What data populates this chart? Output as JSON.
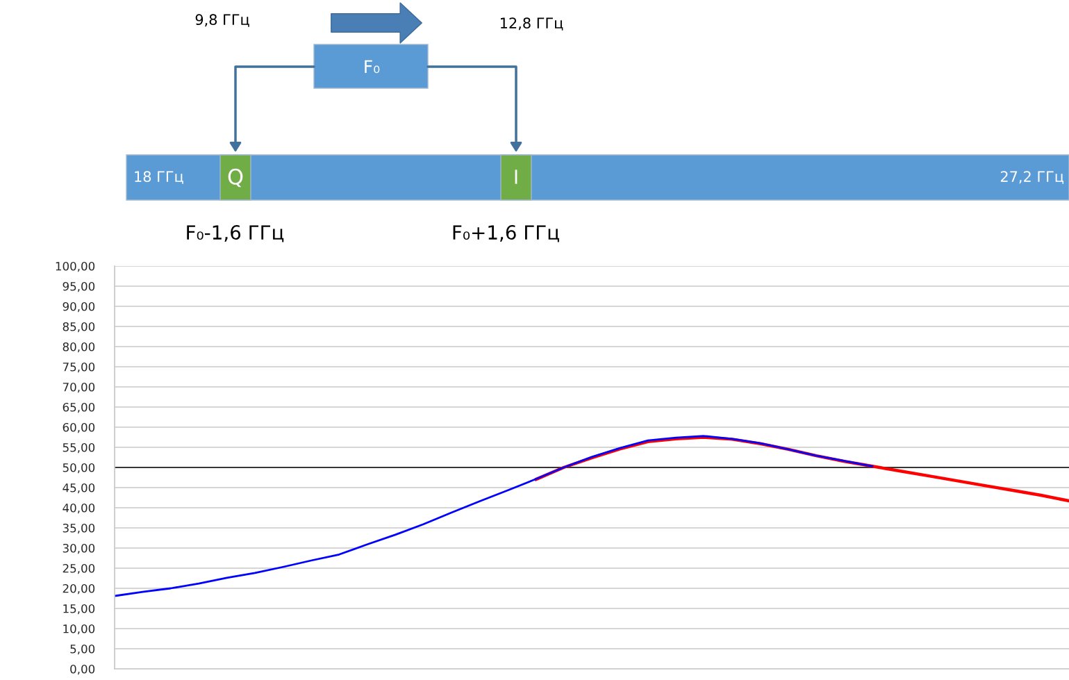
{
  "chart_data": {
    "type": "line",
    "categories": [
      null,
      null,
      null,
      null,
      null,
      null,
      null,
      null,
      null,
      null,
      null,
      null,
      null,
      null,
      null,
      null,
      null,
      null,
      null,
      null,
      null,
      null,
      null,
      null,
      null,
      null,
      null,
      null,
      null,
      null,
      null,
      null,
      null,
      null,
      null
    ],
    "series": [
      {
        "color": "#ff0000",
        "values": [
          null,
          null,
          null,
          null,
          null,
          null,
          null,
          null,
          null,
          null,
          null,
          null,
          null,
          null,
          null,
          47.0,
          50.0,
          52.4,
          54.6,
          56.4,
          57.1,
          57.5,
          57.0,
          55.9,
          54.5,
          52.9,
          51.5,
          50.3,
          49.1,
          47.9,
          46.7,
          45.5,
          44.3,
          43.1,
          41.7
        ]
      },
      {
        "color": "#0000ff",
        "values": [
          18.1,
          19.1,
          20.0,
          21.2,
          22.6,
          23.8,
          25.3,
          26.9,
          28.4,
          30.9,
          33.3,
          35.9,
          38.8,
          41.6,
          44.3,
          47.1,
          50.0,
          52.6,
          54.8,
          56.7,
          57.4,
          57.8,
          57.1,
          56.0,
          54.5,
          52.9,
          51.6,
          50.3,
          null,
          null,
          null,
          null,
          null,
          null,
          null
        ]
      }
    ],
    "ylim": [
      0,
      100
    ],
    "yticks": [
      {
        "value": 0,
        "label": "0,00"
      },
      {
        "value": 5,
        "label": "5,00"
      },
      {
        "value": 10,
        "label": "10,00"
      },
      {
        "value": 15,
        "label": "15,00"
      },
      {
        "value": 20,
        "label": "20,00"
      },
      {
        "value": 25,
        "label": "25,00"
      },
      {
        "value": 30,
        "label": "30,00"
      },
      {
        "value": 35,
        "label": "35,00"
      },
      {
        "value": 40,
        "label": "40,00"
      },
      {
        "value": 45,
        "label": "45,00"
      },
      {
        "value": 50,
        "label": "50,00"
      },
      {
        "value": 55,
        "label": "55,00"
      },
      {
        "value": 60,
        "label": "60,00"
      },
      {
        "value": 65,
        "label": "65,00"
      },
      {
        "value": 70,
        "label": "70,00"
      },
      {
        "value": 75,
        "label": "75,00"
      },
      {
        "value": 80,
        "label": "80,00"
      },
      {
        "value": 85,
        "label": "85,00"
      },
      {
        "value": 90,
        "label": "90,00"
      },
      {
        "value": 95,
        "label": "95,00"
      },
      {
        "value": 100,
        "label": "100,00"
      }
    ],
    "grid": "y",
    "tick_labels": "y",
    "ref_lines": [
      {
        "axis": "y",
        "value": 50,
        "color": "#000000"
      }
    ],
    "annotations": [
      "9,8 ГГц",
      "12,8 ГГц",
      "F₀",
      "18 ГГц",
      "Q",
      "I",
      "27,2 ГГц",
      "F₀-1,6 ГГц",
      "F₀+1,6 ГГц"
    ]
  }
}
